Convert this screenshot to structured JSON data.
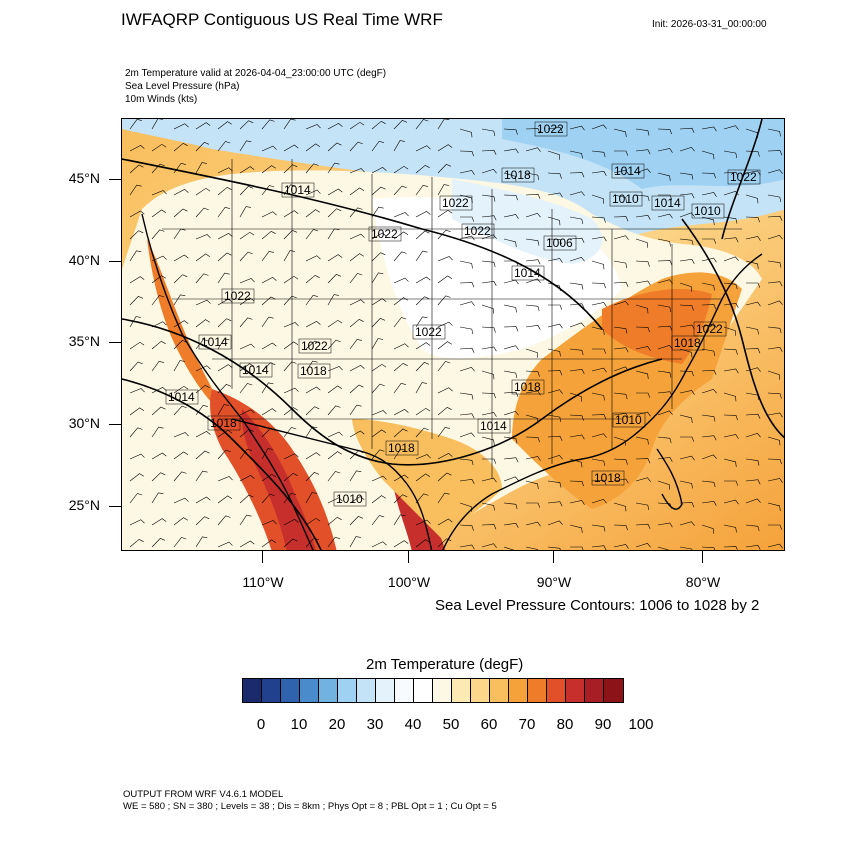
{
  "title": "IWFAQRP Contiguous US Real Time WRF",
  "init": "Init: 2026-03-31_00:00:00",
  "fields": [
    "2m Temperature valid at 2026-04-04_23:00:00 UTC   (degF)",
    "Sea Level Pressure   (hPa)",
    "10m Winds   (kts)"
  ],
  "lat_labels": [
    "45°N",
    "40°N",
    "35°N",
    "30°N",
    "25°N"
  ],
  "lon_labels": [
    "110°W",
    "100°W",
    "90°W",
    "80°W"
  ],
  "contour_note": "Sea Level Pressure Contours: 1006 to 1028 by 2",
  "colorbar": {
    "title": "2m Temperature  (degF)",
    "colors": [
      "#1a2a6c",
      "#21418f",
      "#2f63ad",
      "#4a8bcb",
      "#72b2e0",
      "#9fd2f2",
      "#c4e3f6",
      "#e4f2fb",
      "#f7fbfd",
      "#ffffff",
      "#fdf8e3",
      "#fde9b3",
      "#fcd68a",
      "#f9be5d",
      "#f5a23a",
      "#ef7c28",
      "#e2502a",
      "#c72f2d",
      "#a71e25",
      "#8c1418"
    ],
    "labels": [
      "0",
      "10",
      "20",
      "30",
      "40",
      "50",
      "60",
      "70",
      "80",
      "90",
      "100"
    ]
  },
  "pressure_labels": [
    "1022",
    "1018",
    "1014",
    "1022",
    "1010",
    "1010",
    "1022",
    "1022",
    "1014",
    "1022",
    "1006",
    "1022",
    "1014",
    "1022",
    "1014",
    "1018",
    "1022",
    "1022",
    "1014",
    "1014",
    "1018",
    "1014",
    "1014",
    "1018",
    "1018",
    "1010",
    "1010",
    "1018",
    "1018"
  ],
  "footer": [
    "OUTPUT FROM WRF V4.6.1 MODEL",
    "WE = 580 ; SN = 380 ; Levels = 38 ; Dis = 8km ; Phys Opt = 8 ; PBL Opt = 1 ; Cu Opt = 5"
  ]
}
